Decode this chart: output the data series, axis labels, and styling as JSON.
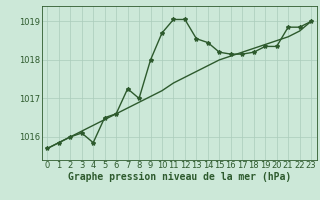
{
  "title": "Graphe pression niveau de la mer (hPa)",
  "background_color": "#cce8d8",
  "line_color": "#2d5a2d",
  "grid_color": "#aaccbb",
  "x_values": [
    0,
    1,
    2,
    3,
    4,
    5,
    6,
    7,
    8,
    9,
    10,
    11,
    12,
    13,
    14,
    15,
    16,
    17,
    18,
    19,
    20,
    21,
    22,
    23
  ],
  "y_jagged": [
    1015.7,
    1015.85,
    1016.0,
    1016.1,
    1015.85,
    1016.5,
    1016.6,
    1017.25,
    1017.0,
    1018.0,
    1018.7,
    1019.05,
    1019.05,
    1018.55,
    1018.45,
    1018.2,
    1018.15,
    1018.15,
    1018.2,
    1018.35,
    1018.35,
    1018.85,
    1018.85,
    1019.0
  ],
  "y_trend": [
    1015.7,
    1015.85,
    1016.0,
    1016.15,
    1016.3,
    1016.45,
    1016.6,
    1016.75,
    1016.9,
    1017.05,
    1017.2,
    1017.4,
    1017.55,
    1017.7,
    1017.85,
    1018.0,
    1018.1,
    1018.2,
    1018.3,
    1018.4,
    1018.5,
    1018.6,
    1018.75,
    1019.0
  ],
  "ylim": [
    1015.4,
    1019.4
  ],
  "yticks": [
    1016,
    1017,
    1018,
    1019
  ],
  "xlim": [
    -0.5,
    23.5
  ],
  "xticks": [
    0,
    1,
    2,
    3,
    4,
    5,
    6,
    7,
    8,
    9,
    10,
    11,
    12,
    13,
    14,
    15,
    16,
    17,
    18,
    19,
    20,
    21,
    22,
    23
  ],
  "tick_fontsize": 6,
  "xlabel_fontsize": 7,
  "linewidth": 1.0,
  "marker_size": 3.0
}
